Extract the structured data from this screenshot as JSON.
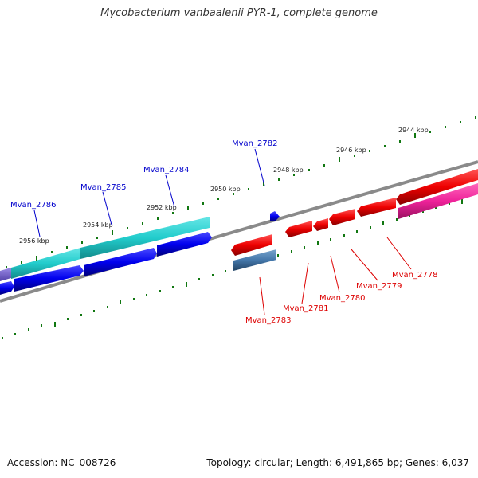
{
  "title": "Mycobacterium vanbaalenii PYR-1, complete genome",
  "footer": {
    "accession": "Accession: NC_008726",
    "stats": "Topology: circular; Length: 6,491,865 bp; Genes: 6,037"
  },
  "ticks": [
    "2944 kbp",
    "2946 kbp",
    "2948 kbp",
    "2950 kbp",
    "2952 kbp",
    "2954 kbp",
    "2956 kbp"
  ],
  "forward_genes": [
    "Mvan_2786",
    "Mvan_2785",
    "Mvan_2784",
    "Mvan_2782"
  ],
  "reverse_genes": [
    "Mvan_2783",
    "Mvan_2781",
    "Mvan_2780",
    "Mvan_2779",
    "Mvan_2778"
  ],
  "colors": {
    "forward_label": "#0000cc",
    "reverse_label": "#dd0000",
    "tick": "#117711",
    "backbone": "#808080",
    "cds_forward": "#0000ee",
    "cds_reverse": "#ee0000",
    "rna_forward": "#22cccc",
    "rna_reverse": "#ee2299",
    "pseudo": "#4477aa"
  }
}
